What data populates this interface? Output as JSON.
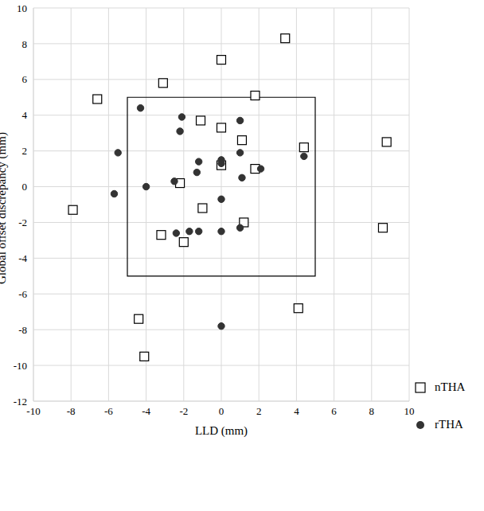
{
  "chart_data": {
    "type": "scatter",
    "x_label": "LLD (mm)",
    "y_label": "Global offset discrepancy (mm)",
    "xlim": [
      -10,
      10
    ],
    "xticks": [
      -10,
      -8,
      -6,
      -4,
      -2,
      0,
      2,
      4,
      6,
      8,
      10
    ],
    "ylim": [
      -12,
      10
    ],
    "yticks": [
      -12,
      -10,
      -8,
      -6,
      -4,
      -2,
      0,
      2,
      4,
      6,
      8,
      10
    ],
    "grid": true,
    "legend": "lower right",
    "reference_box": {
      "x": [
        -5,
        5
      ],
      "y": [
        -5,
        5
      ]
    },
    "series": [
      {
        "name": "nTHA",
        "color": "#000000",
        "marker": "open square",
        "x": [
          3.4,
          0,
          -3.1,
          1.8,
          -6.6,
          -1.1,
          0,
          1.1,
          4.4,
          8.8,
          0,
          1.8,
          -2.2,
          -7.9,
          -1.0,
          1.2,
          8.6,
          -3.2,
          -2.0,
          4.1,
          -4.4,
          -4.1
        ],
        "values": [
          8.3,
          7.1,
          5.8,
          5.1,
          4.9,
          3.7,
          3.3,
          2.6,
          2.2,
          2.5,
          1.2,
          1.0,
          0.2,
          -1.3,
          -1.2,
          -2.0,
          -2.3,
          -2.7,
          -3.1,
          -6.8,
          -7.4,
          -9.5
        ]
      },
      {
        "name": "rTHA",
        "color": "#333333",
        "marker": "circle",
        "x": [
          -4.3,
          -2.1,
          1.0,
          -2.2,
          -5.5,
          1.0,
          4.4,
          0,
          -1.2,
          0,
          2.1,
          -1.3,
          1.1,
          -2.5,
          -4.0,
          -5.7,
          0,
          1.0,
          -2.4,
          -1.7,
          -1.2,
          0,
          0
        ],
        "values": [
          4.4,
          3.9,
          3.7,
          3.1,
          1.9,
          1.9,
          1.7,
          1.5,
          1.4,
          1.3,
          1.0,
          0.8,
          0.5,
          0.3,
          0.0,
          -0.4,
          -0.7,
          -2.3,
          -2.6,
          -2.5,
          -2.5,
          -2.5,
          -7.8
        ]
      }
    ]
  }
}
